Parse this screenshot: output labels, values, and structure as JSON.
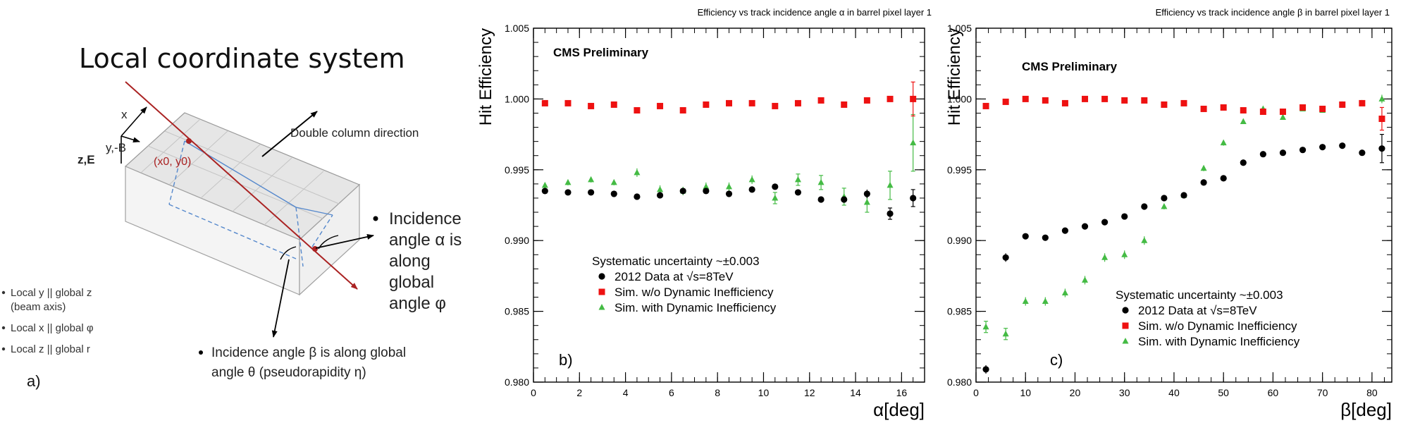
{
  "diagram": {
    "title": "Local coordinate system",
    "axis_x": "x",
    "axis_y": "y,-B",
    "axis_z": "z,E",
    "point_label": "(x0, y0)",
    "double_column": "Double column direction",
    "alpha_note": [
      "Incidence",
      "angle α is",
      "along",
      "global",
      "angle φ"
    ],
    "beta_note": [
      "Incidence angle β is along global",
      "angle θ (pseudorapidity η)"
    ],
    "bullets": [
      "Local y || global z",
      "(beam axis)",
      "Local x || global φ",
      "Local z || global r"
    ],
    "panel_label": "a)"
  },
  "chart_data": [
    {
      "type": "scatter",
      "panel": "b)",
      "title": "Efficiency vs track incidence angle α in barrel pixel layer 1",
      "tag": "CMS Preliminary",
      "xlabel": "α[deg]",
      "ylabel": "Hit Efficiency",
      "xlim": [
        0,
        17
      ],
      "ylim": [
        0.98,
        1.005
      ],
      "xticks": [
        0,
        2,
        4,
        6,
        8,
        10,
        12,
        14,
        16
      ],
      "yticks": [
        0.98,
        0.985,
        0.99,
        0.995,
        1.0,
        1.005
      ],
      "legend_header": "Systematic uncertainty ~±0.003",
      "series": [
        {
          "name": "2012 Data at √s=8TeV",
          "marker": "circle",
          "color": "#000000",
          "x": [
            0.5,
            1.5,
            2.5,
            3.5,
            4.5,
            5.5,
            6.5,
            7.5,
            8.5,
            9.5,
            10.5,
            11.5,
            12.5,
            13.5,
            14.5,
            15.5,
            16.5
          ],
          "y": [
            0.9935,
            0.9934,
            0.9934,
            0.9933,
            0.9931,
            0.9932,
            0.9935,
            0.9935,
            0.9933,
            0.9936,
            0.9938,
            0.9934,
            0.9929,
            0.9929,
            0.9933,
            0.9919,
            0.993
          ],
          "err": [
            0.0001,
            0.0001,
            0.0001,
            0.0001,
            0.0001,
            0.0001,
            0.0001,
            0.0001,
            0.0001,
            0.0001,
            0.0001,
            0.0001,
            0.0002,
            0.0002,
            0.0003,
            0.0004,
            0.0006
          ]
        },
        {
          "name": "Sim. w/o Dynamic Inefficiency",
          "marker": "square",
          "color": "#ee1111",
          "x": [
            0.5,
            1.5,
            2.5,
            3.5,
            4.5,
            5.5,
            6.5,
            7.5,
            8.5,
            9.5,
            10.5,
            11.5,
            12.5,
            13.5,
            14.5,
            15.5,
            16.5
          ],
          "y": [
            0.9997,
            0.9997,
            0.9995,
            0.9996,
            0.9992,
            0.9995,
            0.9992,
            0.9996,
            0.9997,
            0.9997,
            0.9995,
            0.9997,
            0.9999,
            0.9996,
            0.9999,
            1.0,
            1.0
          ],
          "err": [
            0.0001,
            0.0001,
            0.0001,
            0.0001,
            0.0001,
            0.0001,
            0.0001,
            0.0001,
            0.0001,
            0.0001,
            0.0001,
            0.0001,
            0.0001,
            0.0001,
            0.0001,
            0.0001,
            0.0012
          ]
        },
        {
          "name": "Sim. with Dynamic Inefficiency",
          "marker": "triangle",
          "color": "#44bb44",
          "x": [
            0.5,
            1.5,
            2.5,
            3.5,
            4.5,
            5.5,
            6.5,
            7.5,
            8.5,
            9.5,
            10.5,
            11.5,
            12.5,
            13.5,
            14.5,
            15.5,
            16.5
          ],
          "y": [
            0.9939,
            0.9941,
            0.9943,
            0.9941,
            0.9948,
            0.9936,
            0.9935,
            0.9938,
            0.9938,
            0.9943,
            0.993,
            0.9943,
            0.9941,
            0.9931,
            0.9927,
            0.9939,
            0.9969
          ],
          "err": [
            0.0002,
            0.0002,
            0.0002,
            0.0002,
            0.0003,
            0.0003,
            0.0003,
            0.0003,
            0.0003,
            0.0003,
            0.0004,
            0.0004,
            0.0005,
            0.0006,
            0.0007,
            0.001,
            0.002
          ]
        }
      ]
    },
    {
      "type": "scatter",
      "panel": "c)",
      "title": "Efficiency vs track incidence angle β in barrel pixel layer 1",
      "tag": "CMS Preliminary",
      "xlabel": "β[deg]",
      "ylabel": "Hit Efficiency",
      "xlim": [
        0,
        84
      ],
      "ylim": [
        0.98,
        1.005
      ],
      "xticks": [
        0,
        10,
        20,
        30,
        40,
        50,
        60,
        70,
        80
      ],
      "yticks": [
        0.98,
        0.985,
        0.99,
        0.995,
        1.0,
        1.005
      ],
      "legend_header": "Systematic uncertainty ~±0.003",
      "series": [
        {
          "name": "2012 Data at √s=8TeV",
          "marker": "circle",
          "color": "#000000",
          "x": [
            2,
            6,
            10,
            14,
            18,
            22,
            26,
            30,
            34,
            38,
            42,
            46,
            50,
            54,
            58,
            62,
            66,
            70,
            74,
            78,
            82
          ],
          "y": [
            0.9809,
            0.9888,
            0.9903,
            0.9902,
            0.9907,
            0.991,
            0.9913,
            0.9917,
            0.9924,
            0.993,
            0.9932,
            0.9941,
            0.9944,
            0.9955,
            0.9961,
            0.9962,
            0.9964,
            0.9966,
            0.9967,
            0.9962,
            0.9965
          ],
          "err": [
            0.0003,
            0.0003,
            0.0002,
            0.0002,
            0.0002,
            0.0002,
            0.0002,
            0.0001,
            0.0001,
            0.0001,
            0.0001,
            0.0001,
            0.0001,
            0.0001,
            0.0001,
            0.0001,
            0.0001,
            0.0001,
            0.0001,
            0.0001,
            0.001
          ]
        },
        {
          "name": "Sim. w/o Dynamic Inefficiency",
          "marker": "square",
          "color": "#ee1111",
          "x": [
            2,
            6,
            10,
            14,
            18,
            22,
            26,
            30,
            34,
            38,
            42,
            46,
            50,
            54,
            58,
            62,
            66,
            70,
            74,
            78,
            82
          ],
          "y": [
            0.9995,
            0.9998,
            1.0,
            0.9999,
            0.9997,
            1.0,
            1.0,
            0.9999,
            0.9999,
            0.9996,
            0.9997,
            0.9993,
            0.9994,
            0.9992,
            0.9991,
            0.9991,
            0.9994,
            0.9993,
            0.9996,
            0.9997,
            0.9986
          ],
          "err": [
            0.0001,
            0.0001,
            0.0001,
            0.0001,
            0.0001,
            0.0001,
            0.0001,
            0.0001,
            0.0001,
            0.0001,
            0.0001,
            0.0001,
            0.0001,
            0.0001,
            0.0001,
            0.0001,
            0.0001,
            0.0001,
            0.0001,
            0.0001,
            0.0008
          ]
        },
        {
          "name": "Sim. with Dynamic Inefficiency",
          "marker": "triangle",
          "color": "#44bb44",
          "x": [
            2,
            6,
            10,
            14,
            18,
            22,
            26,
            30,
            34,
            38,
            42,
            46,
            50,
            54,
            58,
            62,
            66,
            70,
            74,
            78,
            82
          ],
          "y": [
            0.9839,
            0.9834,
            0.9857,
            0.9857,
            0.9863,
            0.9872,
            0.9888,
            0.989,
            0.99,
            0.9924,
            0.9932,
            0.9951,
            0.9969,
            0.9984,
            0.9993,
            0.9987,
            0.9993,
            0.9992,
            0.9996,
            0.9997,
            1.0
          ],
          "err": [
            0.0004,
            0.0004,
            0.0003,
            0.0003,
            0.0003,
            0.0003,
            0.0003,
            0.0003,
            0.0003,
            0.0002,
            0.0002,
            0.0002,
            0.0002,
            0.0001,
            0.0001,
            0.0001,
            0.0001,
            0.0001,
            0.0001,
            0.0001,
            0.0003
          ]
        }
      ]
    }
  ]
}
